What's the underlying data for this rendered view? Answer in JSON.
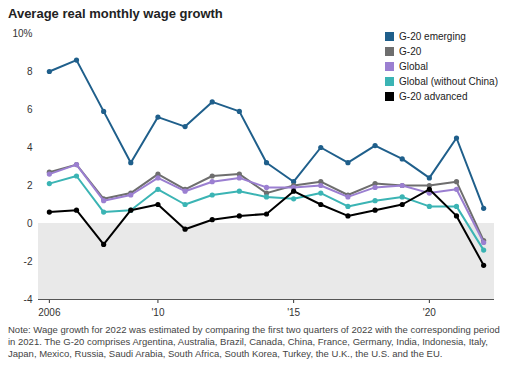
{
  "chart_data": {
    "type": "line",
    "title": "Average real monthly wage growth",
    "note": "Note: Wage growth for 2022 was estimated by comparing the first two quarters of 2022 with the corresponding period in 2021. The G-20 comprises Argentina, Australia, Brazil, Canada, China, France, Germany, India, Indonesia, Italy, Japan, Mexico, Russia, Saudi Arabia, South Africa, South Korea, Turkey, the U.K., the U.S. and the EU.",
    "x": [
      2006,
      2007,
      2008,
      2009,
      2010,
      2011,
      2012,
      2013,
      2014,
      2015,
      2016,
      2017,
      2018,
      2019,
      2020,
      2021,
      2022
    ],
    "xlim": [
      2005.6,
      2022.4
    ],
    "xticks": [
      2006,
      {
        "value": 2010,
        "label": "'10"
      },
      {
        "value": 2015,
        "label": "'15"
      },
      {
        "value": 2020,
        "label": "'20"
      }
    ],
    "ylim": [
      -4,
      10
    ],
    "yticks": [
      -4,
      -2,
      0,
      2,
      4,
      6,
      8,
      {
        "value": 10,
        "label": "10%"
      }
    ],
    "grid": false,
    "legend": "top-right",
    "marker": "circle",
    "series": [
      {
        "name": "G-20 emerging",
        "color": "#1f5f8b",
        "values": [
          8.0,
          8.6,
          5.9,
          3.2,
          5.6,
          5.1,
          6.4,
          5.9,
          3.2,
          2.2,
          4.0,
          3.2,
          4.1,
          3.4,
          2.4,
          4.5,
          0.8
        ]
      },
      {
        "name": "G-20",
        "color": "#6e6e6e",
        "values": [
          2.7,
          3.1,
          1.3,
          1.6,
          2.6,
          1.8,
          2.5,
          2.6,
          1.6,
          2.0,
          2.2,
          1.5,
          2.1,
          2.0,
          2.0,
          2.2,
          -0.9
        ]
      },
      {
        "name": "Global",
        "color": "#9b7fd1",
        "values": [
          2.6,
          3.1,
          1.2,
          1.5,
          2.4,
          1.7,
          2.2,
          2.4,
          1.9,
          1.9,
          2.0,
          1.4,
          1.9,
          2.0,
          1.6,
          1.8,
          -1.0
        ]
      },
      {
        "name": "Global (without China)",
        "color": "#3bb4b4",
        "values": [
          2.1,
          2.5,
          0.6,
          0.7,
          1.8,
          1.0,
          1.5,
          1.7,
          1.4,
          1.3,
          1.6,
          0.9,
          1.2,
          1.4,
          0.9,
          0.9,
          -1.4
        ]
      },
      {
        "name": "G-20 advanced",
        "color": "#000000",
        "values": [
          0.6,
          0.7,
          -1.1,
          0.7,
          1.0,
          -0.3,
          0.2,
          0.4,
          0.5,
          1.7,
          1.0,
          0.4,
          0.7,
          1.0,
          1.8,
          0.4,
          -2.2
        ]
      }
    ]
  }
}
